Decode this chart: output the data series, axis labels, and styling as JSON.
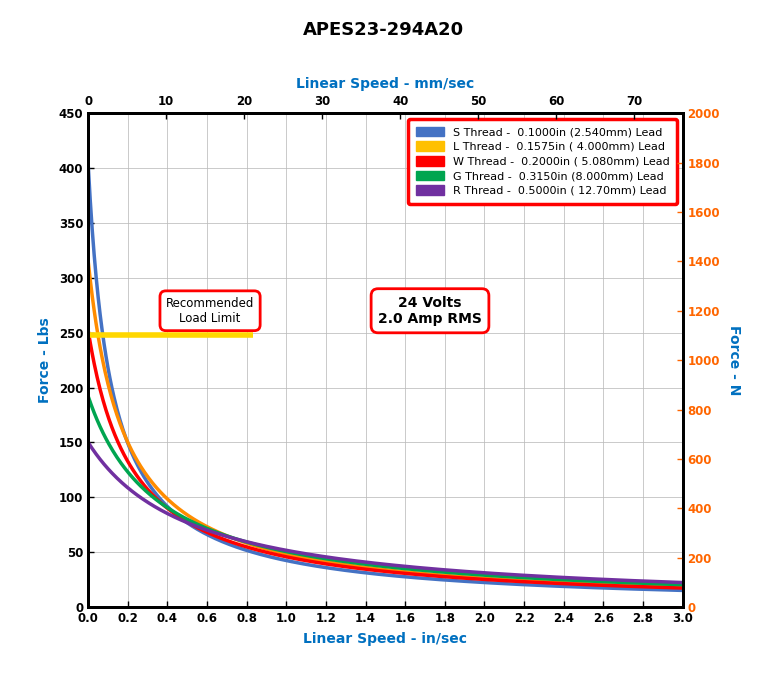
{
  "title": "APES23-294A20",
  "xlabel_bottom": "Linear Speed - in/sec",
  "xlabel_top": "Linear Speed - mm/sec",
  "ylabel_left": "Force - Lbs",
  "ylabel_right": "Force - N",
  "x_in_min": 0.0,
  "x_in_max": 3.0,
  "x_mm_min": 0,
  "x_mm_max": 76.2,
  "y_lbs_min": 0,
  "y_lbs_max": 450,
  "y_n_min": 0,
  "y_n_max": 2000,
  "recommended_load_lbs": 248,
  "recommended_load_x_end": 0.83,
  "annotation_voltage": "24 Volts\n2.0 Amp RMS",
  "legend_entries": [
    {
      "label": "S Thread -  0.1000in (2.540mm) Lead",
      "color": "#4472C4"
    },
    {
      "label": "L Thread -  0.1575in ( 4.000mm) Lead",
      "color": "#FFC000"
    },
    {
      "label": "W Thread -  0.2000in ( 5.080mm) Lead",
      "color": "#FF0000"
    },
    {
      "label": "G Thread -  0.3150in (8.000mm) Lead",
      "color": "#00A550"
    },
    {
      "label": "R Thread -  0.5000in ( 12.70mm) Lead",
      "color": "#7030A0"
    }
  ],
  "background_color": "#FFFFFF",
  "grid_color": "#BBBBBB",
  "title_color": "#000000",
  "axis_label_color_blue": "#0070C0",
  "tick_color_right": "#FF6600",
  "tick_color_black": "#000000",
  "thread_params": {
    "S": {
      "F0": 403,
      "B": 8.5,
      "color": "#4472C4",
      "plot_color": "#4472C4"
    },
    "L": {
      "F0": 315,
      "B": 5.5,
      "color": "#FFC000",
      "plot_color": "#FF8C00"
    },
    "W": {
      "F0": 252,
      "B": 4.5,
      "color": "#FF0000",
      "plot_color": "#FF0000"
    },
    "G": {
      "F0": 192,
      "B": 2.8,
      "color": "#00A550",
      "plot_color": "#00A550"
    },
    "R": {
      "F0": 150,
      "B": 1.9,
      "color": "#7030A0",
      "plot_color": "#7030A0"
    }
  }
}
